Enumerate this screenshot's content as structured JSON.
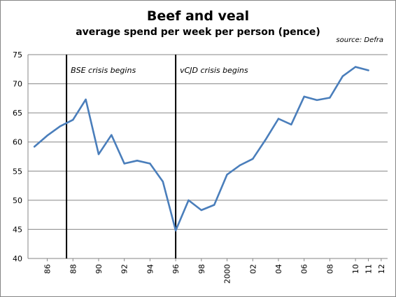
{
  "chart_data": {
    "type": "line",
    "title": "Beef and veal",
    "subtitle": "average spend per week per person (pence)",
    "source": "source: Defra",
    "xlabel": "",
    "ylabel": "",
    "ylim": [
      40,
      75
    ],
    "xlim": [
      1984.5,
      2012.5
    ],
    "yticks": [
      40,
      45,
      50,
      55,
      60,
      65,
      70,
      75
    ],
    "xticks": [
      {
        "year": 1986,
        "label": "86"
      },
      {
        "year": 1988,
        "label": "88"
      },
      {
        "year": 1990,
        "label": "90"
      },
      {
        "year": 1992,
        "label": "92"
      },
      {
        "year": 1994,
        "label": "94"
      },
      {
        "year": 1996,
        "label": "96"
      },
      {
        "year": 1998,
        "label": "98"
      },
      {
        "year": 2000,
        "label": "2000"
      },
      {
        "year": 2002,
        "label": "02"
      },
      {
        "year": 2004,
        "label": "04"
      },
      {
        "year": 2006,
        "label": "06"
      },
      {
        "year": 2008,
        "label": "08"
      },
      {
        "year": 2010,
        "label": "10"
      },
      {
        "year": 2011,
        "label": "11"
      },
      {
        "year": 2012,
        "label": "12"
      }
    ],
    "grid": true,
    "series": [
      {
        "color": "#4a7ebb",
        "x": [
          1985,
          1986,
          1987,
          1988,
          1989,
          1990,
          1991,
          1992,
          1993,
          1994,
          1995,
          1996,
          1997,
          1998,
          1999,
          2000,
          2001,
          2002,
          2003,
          2004,
          2005,
          2006,
          2007,
          2008,
          2009,
          2010,
          2011
        ],
        "values": [
          59.2,
          61.1,
          62.7,
          63.8,
          67.3,
          57.9,
          61.2,
          56.3,
          56.8,
          56.3,
          53.2,
          44.8,
          50.0,
          48.3,
          49.2,
          54.4,
          56.0,
          57.1,
          60.4,
          64.0,
          63.0,
          67.8,
          67.2,
          67.6,
          71.3,
          72.9,
          72.3
        ]
      }
    ],
    "annotations": [
      {
        "x": 1987.5,
        "label": "BSE crisis begins"
      },
      {
        "x": 1996.0,
        "label": "vCJD crisis begins"
      }
    ]
  }
}
